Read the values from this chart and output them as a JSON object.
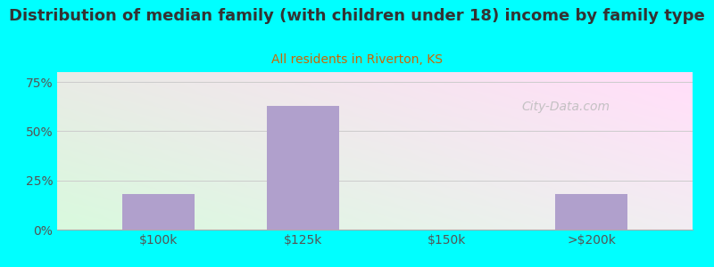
{
  "title": "Distribution of median family (with children under 18) income by family type",
  "subtitle": "All residents in Riverton, KS",
  "categories": [
    "$100k",
    "$125k",
    "$150k",
    ">$200k"
  ],
  "values": [
    18.0,
    63.0,
    0.0,
    18.0
  ],
  "bar_color": "#b0a0cc",
  "background_color": "#00FFFF",
  "plot_bg_topleft": "#d6eedd",
  "plot_bg_topright": "#e8f4f0",
  "plot_bg_bottom": "#c8e8d0",
  "title_color": "#333333",
  "subtitle_color": "#cc6600",
  "tick_color": "#555555",
  "grid_color": "#cccccc",
  "yticks": [
    0,
    25,
    50,
    75
  ],
  "ylim": [
    0,
    80
  ],
  "title_fontsize": 13,
  "subtitle_fontsize": 10,
  "watermark_text": "City-Data.com",
  "watermark_color": "#bbbbbb"
}
